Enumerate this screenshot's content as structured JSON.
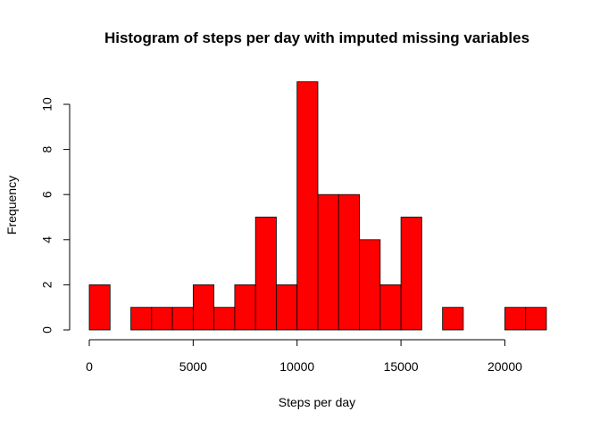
{
  "chart_data": {
    "type": "bar",
    "title": "Histogram of steps per day with imputed missing variables",
    "xlabel": "Steps per day",
    "ylabel": "Frequency",
    "bar_color": "#ff0000",
    "bar_border_color": "#000000",
    "bin_width": 1000,
    "bin_starts": [
      0,
      1000,
      2000,
      3000,
      4000,
      5000,
      6000,
      7000,
      8000,
      9000,
      10000,
      11000,
      12000,
      13000,
      14000,
      15000,
      16000,
      17000,
      18000,
      19000,
      20000,
      21000
    ],
    "values": [
      2,
      0,
      1,
      1,
      1,
      2,
      1,
      2,
      5,
      2,
      11,
      6,
      6,
      4,
      2,
      5,
      0,
      1,
      0,
      0,
      1,
      1
    ],
    "xlim": [
      0,
      22000
    ],
    "ylim": [
      0,
      11
    ],
    "x_ticks": [
      0,
      5000,
      10000,
      15000,
      20000
    ],
    "x_tick_labels": [
      "0",
      "5000",
      "10000",
      "15000",
      "20000"
    ],
    "y_ticks": [
      0,
      2,
      4,
      6,
      8,
      10
    ],
    "y_tick_labels": [
      "0",
      "2",
      "4",
      "6",
      "8",
      "10"
    ],
    "grid": false,
    "legend": "none"
  }
}
